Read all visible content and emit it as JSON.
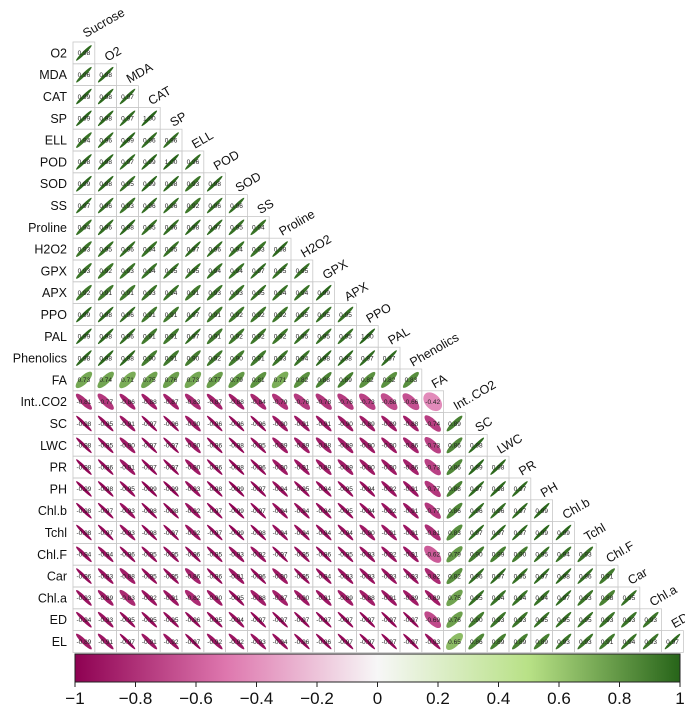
{
  "chart_data": {
    "type": "heatmap",
    "variables": [
      "Sucrose",
      "O2",
      "MDA",
      "CAT",
      "SP",
      "ELL",
      "POD",
      "SOD",
      "SS",
      "Proline",
      "H2O2",
      "GPX",
      "APX",
      "PPO",
      "PAL",
      "Phenolics",
      "FA",
      "Int..CO2",
      "SC",
      "LWC",
      "PR",
      "PH",
      "Chl.b",
      "Tchl",
      "Chl.F",
      "Car",
      "Chl.a",
      "ED",
      "EL"
    ],
    "row_labels": [
      "O2",
      "MDA",
      "CAT",
      "SP",
      "ELL",
      "POD",
      "SOD",
      "SS",
      "Proline",
      "H2O2",
      "GPX",
      "APX",
      "PPO",
      "PAL",
      "Phenolics",
      "FA",
      "Int..CO2",
      "SC",
      "LWC",
      "PR",
      "PH",
      "Chl.b",
      "Tchl",
      "Chl.F",
      "Car",
      "Chl.a",
      "ED",
      "EL"
    ],
    "col_labels": [
      "Sucrose",
      "O2",
      "MDA",
      "CAT",
      "SP",
      "ELL",
      "POD",
      "SOD",
      "SS",
      "Proline",
      "H2O2",
      "GPX",
      "APX",
      "PPO",
      "PAL",
      "Phenolics",
      "FA",
      "Int..CO2",
      "SC",
      "LWC",
      "PR",
      "PH",
      "Chl.b",
      "Tchl",
      "Chl.F",
      "Car",
      "Chl.a",
      "ED"
    ],
    "matrix": [
      [
        0.98
      ],
      [
        0.96,
        0.98
      ],
      [
        0.99,
        0.98,
        0.97
      ],
      [
        0.99,
        0.98,
        0.97,
        1.0
      ],
      [
        0.94,
        0.96,
        0.99,
        0.96,
        0.96
      ],
      [
        0.98,
        0.98,
        0.97,
        0.99,
        1.0,
        0.96
      ],
      [
        0.99,
        0.98,
        0.95,
        0.99,
        0.98,
        0.93,
        0.98
      ],
      [
        0.97,
        0.96,
        0.93,
        0.96,
        0.96,
        0.92,
        0.96,
        0.96
      ],
      [
        0.94,
        0.96,
        0.98,
        0.95,
        0.96,
        0.98,
        0.97,
        0.95,
        0.94
      ],
      [
        0.93,
        0.95,
        0.96,
        0.94,
        0.95,
        0.97,
        0.96,
        0.94,
        0.93,
        0.98
      ],
      [
        0.93,
        0.92,
        0.93,
        0.94,
        0.95,
        0.95,
        0.94,
        0.94,
        0.97,
        0.95,
        0.95
      ],
      [
        0.92,
        0.91,
        0.91,
        0.93,
        0.94,
        0.91,
        0.93,
        0.93,
        0.95,
        0.94,
        0.94,
        0.99
      ],
      [
        0.99,
        0.98,
        0.96,
        0.91,
        0.91,
        0.97,
        0.91,
        0.92,
        0.92,
        0.92,
        0.95,
        0.95,
        0.95
      ],
      [
        0.99,
        0.98,
        0.96,
        0.91,
        0.91,
        0.97,
        0.91,
        0.92,
        0.92,
        0.92,
        0.95,
        0.95,
        0.95,
        1.0
      ],
      [
        0.98,
        0.98,
        0.98,
        0.9,
        0.91,
        0.9,
        0.92,
        0.9,
        0.91,
        0.93,
        0.94,
        0.98,
        0.98,
        0.97,
        0.97
      ],
      [
        0.73,
        0.74,
        0.71,
        0.75,
        0.76,
        0.73,
        0.77,
        0.79,
        0.81,
        0.71,
        0.82,
        0.88,
        0.89,
        0.82,
        0.82,
        0.83
      ],
      [
        -0.81,
        -0.77,
        -0.86,
        -0.88,
        -0.87,
        -0.83,
        -0.87,
        -0.88,
        -0.84,
        -0.79,
        -0.76,
        -0.78,
        -0.76,
        -0.73,
        -0.68,
        -0.66,
        -0.42
      ],
      [
        -0.98,
        -0.95,
        -0.91,
        -0.97,
        -0.96,
        -0.9,
        -0.96,
        -0.96,
        -0.96,
        -0.9,
        -0.91,
        -0.91,
        -0.9,
        -0.89,
        -0.89,
        -0.88,
        -0.74,
        0.89
      ],
      [
        -0.98,
        -0.95,
        -0.9,
        -0.97,
        -0.97,
        -0.9,
        -0.96,
        -0.98,
        -0.95,
        -0.89,
        -0.89,
        -0.88,
        -0.89,
        -0.9,
        -0.9,
        -0.86,
        -0.73,
        0.86,
        0.98
      ],
      [
        -0.98,
        -0.96,
        -0.91,
        -0.97,
        -0.97,
        -0.9,
        -0.96,
        -0.98,
        -0.96,
        -0.9,
        -0.91,
        -0.89,
        -0.89,
        -0.9,
        -0.9,
        -0.86,
        -0.73,
        0.86,
        0.99,
        0.98
      ],
      [
        -0.99,
        -0.98,
        -0.95,
        -0.99,
        -0.99,
        -0.93,
        -0.98,
        -0.99,
        -0.97,
        -0.94,
        -0.95,
        -0.94,
        -0.95,
        -0.94,
        -0.92,
        -0.91,
        -0.77,
        0.88,
        0.97,
        0.98,
        0.97
      ],
      [
        -0.98,
        -0.97,
        -0.93,
        -0.98,
        -0.98,
        -0.92,
        -0.97,
        -0.99,
        -0.97,
        -0.94,
        -0.94,
        -0.94,
        -0.95,
        -0.94,
        -0.92,
        -0.91,
        -0.77,
        0.86,
        0.96,
        0.96,
        0.97,
        0.99
      ],
      [
        -0.98,
        -0.97,
        -0.93,
        -0.98,
        -0.97,
        -0.92,
        -0.97,
        -0.99,
        -0.98,
        -0.94,
        -0.94,
        -0.94,
        -0.94,
        -0.9,
        -0.91,
        -0.91,
        -0.81,
        0.83,
        0.97,
        0.97,
        0.97,
        0.99,
        0.99
      ],
      [
        -0.94,
        -0.94,
        -0.96,
        -0.95,
        -0.95,
        -0.96,
        -0.95,
        -0.93,
        -0.92,
        -0.97,
        -0.95,
        -0.96,
        -0.95,
        -0.93,
        -0.92,
        -0.91,
        -0.62,
        0.79,
        0.9,
        0.89,
        0.9,
        0.95,
        0.94,
        0.93
      ],
      [
        -0.96,
        -0.93,
        -0.88,
        -0.95,
        -0.95,
        -0.86,
        -0.96,
        -0.91,
        -0.96,
        -0.9,
        -0.95,
        -0.94,
        -0.93,
        -0.93,
        -0.93,
        -0.93,
        -0.82,
        0.82,
        0.96,
        0.97,
        0.95,
        0.97,
        0.98,
        0.96,
        0.91
      ],
      [
        -0.93,
        -0.89,
        -0.83,
        -0.92,
        -0.91,
        -0.82,
        -0.9,
        -0.95,
        -0.88,
        -0.87,
        -0.9,
        -0.91,
        -0.89,
        -0.88,
        -0.91,
        -0.89,
        -0.89,
        0.75,
        0.95,
        0.94,
        0.94,
        0.94,
        0.97,
        0.93,
        0.88,
        0.95
      ],
      [
        -0.94,
        -0.93,
        -0.95,
        -0.95,
        -0.95,
        -0.96,
        -0.95,
        -0.94,
        -0.97,
        -0.97,
        -0.97,
        -0.97,
        -0.97,
        -0.97,
        -0.97,
        -0.97,
        -0.69,
        0.76,
        0.9,
        0.93,
        0.93,
        0.95,
        0.95,
        0.95,
        0.93,
        0.93,
        0.93
      ],
      [
        -0.89,
        -0.91,
        -0.97,
        -0.91,
        -0.92,
        -0.97,
        -0.92,
        -0.92,
        -0.93,
        -0.94,
        -0.96,
        -0.96,
        -0.97,
        -0.97,
        -0.97,
        -0.97,
        -0.93,
        0.65,
        0.86,
        0.89,
        0.89,
        0.89,
        0.93,
        0.93,
        0.91,
        0.94,
        0.93,
        0.97
      ]
    ],
    "legend": {
      "ticks": [
        -1,
        -0.8,
        -0.6,
        -0.4,
        -0.2,
        0,
        0.2,
        0.4,
        0.6,
        0.8,
        1
      ],
      "tick_labels": [
        "−1",
        "−0.8",
        "−0.6",
        "−0.4",
        "−0.2",
        "0",
        "0.2",
        "0.4",
        "0.6",
        "0.8",
        "1"
      ],
      "placement": "bottom"
    },
    "colors": {
      "neg_strong": "#8e0152",
      "neg_mid": "#de77ae",
      "neutral": "#f7f7f7",
      "pos_mid": "#b8e186",
      "pos_strong": "#276419"
    }
  }
}
